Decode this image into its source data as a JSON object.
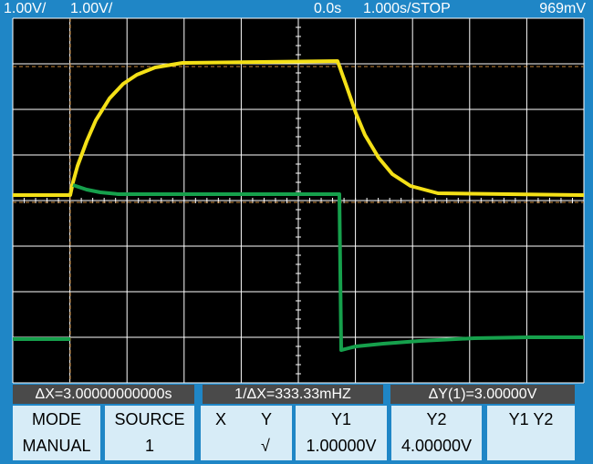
{
  "top_bar": {
    "ch1_scale": "1.00V/",
    "ch2_scale": "1.00V/",
    "time_offset": "0.0s",
    "timebase_status": "1.000s/STOP",
    "trigger_level": "969mV"
  },
  "status": [
    "ΔX=3.00000000000s",
    "1/ΔX=333.33mHZ",
    "ΔY(1)=3.00000V"
  ],
  "buttons": [
    {
      "label": "MODE",
      "value": "MANUAL"
    },
    {
      "label": "SOURCE",
      "value": "1"
    },
    {
      "label_x": "X",
      "label_y": "Y",
      "value": "√"
    },
    {
      "label": "Y1",
      "value": "1.00000V"
    },
    {
      "label": "Y2",
      "value": "4.00000V"
    },
    {
      "label": "Y1 Y2"
    }
  ]
}
